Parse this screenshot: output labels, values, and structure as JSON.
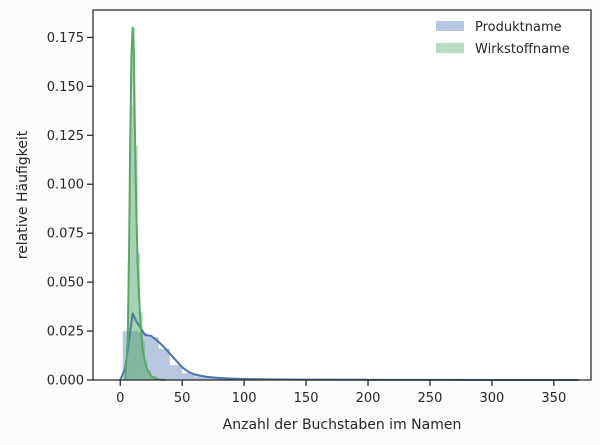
{
  "chart_data": {
    "type": "area",
    "title": "",
    "xlabel": "Anzahl der Buchstaben im Namen",
    "ylabel": "relative Häufigkeit",
    "xlim": [
      -22,
      380
    ],
    "ylim": [
      0,
      0.189
    ],
    "xticks": [
      "0",
      "50",
      "100",
      "150",
      "200",
      "250",
      "300",
      "350"
    ],
    "yticks": [
      "0.000",
      "0.025",
      "0.050",
      "0.075",
      "0.100",
      "0.125",
      "0.150",
      "0.175"
    ],
    "grid": false,
    "legend_position": "top-right",
    "series": [
      {
        "name": "Produktname",
        "color": "#4c72b0",
        "histogram": {
          "bin_edges": [
            2,
            15,
            22,
            31,
            40,
            50,
            60,
            75,
            90,
            110,
            140,
            180,
            250,
            370
          ],
          "heights": [
            0.025,
            0.024,
            0.022,
            0.016,
            0.0075,
            0.0035,
            0.0018,
            0.0009,
            0.0005,
            0.0002,
            0.0001,
            5e-05,
            2e-05
          ]
        },
        "kde": {
          "x": [
            0,
            4,
            7,
            10,
            13,
            17,
            20,
            25,
            30,
            35,
            40,
            45,
            50,
            55,
            60,
            70,
            80,
            90,
            100,
            120,
            150,
            200,
            260,
            320,
            370
          ],
          "y": [
            0,
            0.006,
            0.02,
            0.034,
            0.03,
            0.026,
            0.023,
            0.0225,
            0.02,
            0.017,
            0.0135,
            0.01,
            0.0065,
            0.0042,
            0.0028,
            0.0016,
            0.001,
            0.0007,
            0.0005,
            0.0003,
            0.0002,
            0.0001,
            5e-05,
            2e-05,
            0
          ]
        }
      },
      {
        "name": "Wirkstoffname",
        "color": "#55a868",
        "histogram": {
          "bin_edges": [
            4,
            6,
            8,
            10,
            12,
            14,
            16,
            18,
            20,
            22,
            25,
            30
          ],
          "heights": [
            0.01,
            0.06,
            0.14,
            0.18,
            0.12,
            0.065,
            0.035,
            0.02,
            0.01,
            0.005,
            0.002
          ]
        },
        "kde": {
          "x": [
            4,
            6,
            7,
            8,
            9,
            10,
            11,
            12,
            13,
            14,
            15,
            16,
            17,
            18,
            20,
            22,
            25,
            28,
            32,
            36
          ],
          "y": [
            0,
            0.02,
            0.06,
            0.12,
            0.165,
            0.18,
            0.165,
            0.12,
            0.085,
            0.06,
            0.045,
            0.033,
            0.024,
            0.016,
            0.009,
            0.005,
            0.002,
            0.0008,
            0.0002,
            0
          ]
        }
      }
    ]
  }
}
